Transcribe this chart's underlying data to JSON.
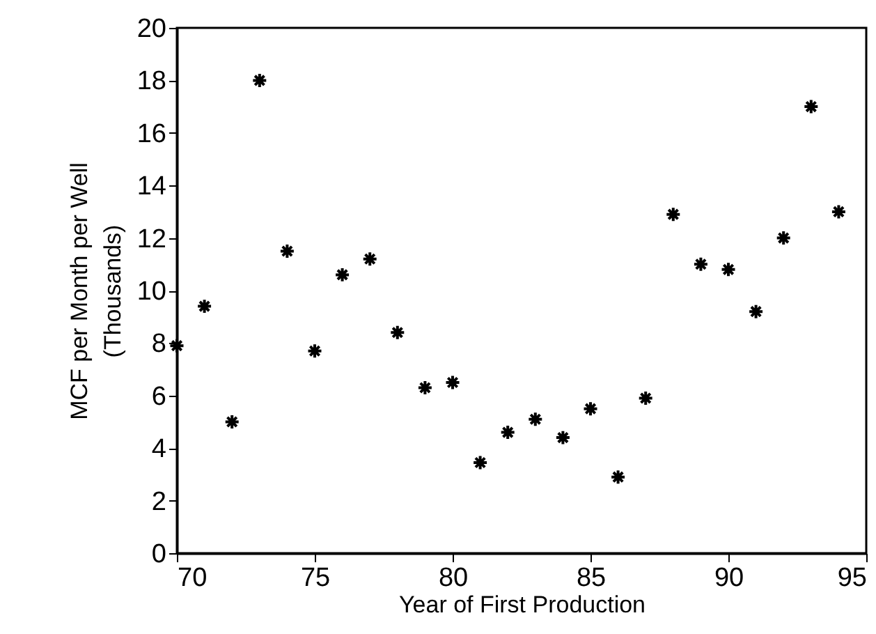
{
  "chart_data": {
    "type": "scatter",
    "xlabel": "Year of First Production",
    "ylabel": "MCF per Month per Well\n(Thousands)",
    "x": [
      70,
      71,
      72,
      73,
      74,
      75,
      76,
      77,
      78,
      79,
      80,
      81,
      82,
      83,
      84,
      85,
      86,
      87,
      88,
      89,
      90,
      91,
      92,
      93,
      94
    ],
    "series": [
      {
        "color": "#000000",
        "values": [
          7.9,
          9.4,
          5.0,
          18.0,
          11.5,
          7.7,
          10.6,
          11.2,
          8.4,
          6.3,
          6.5,
          3.45,
          4.6,
          5.1,
          4.4,
          5.5,
          2.9,
          5.9,
          12.9,
          11.0,
          10.8,
          9.2,
          12.0,
          17.0,
          13.0
        ]
      }
    ],
    "xlim": [
      70,
      95
    ],
    "xticks": [
      70,
      75,
      80,
      85,
      90,
      95
    ],
    "ylim": [
      0,
      20
    ],
    "yticks": [
      0,
      2,
      4,
      6,
      8,
      10,
      12,
      14,
      16,
      18,
      20
    ],
    "marker": "cross",
    "grid": false
  }
}
